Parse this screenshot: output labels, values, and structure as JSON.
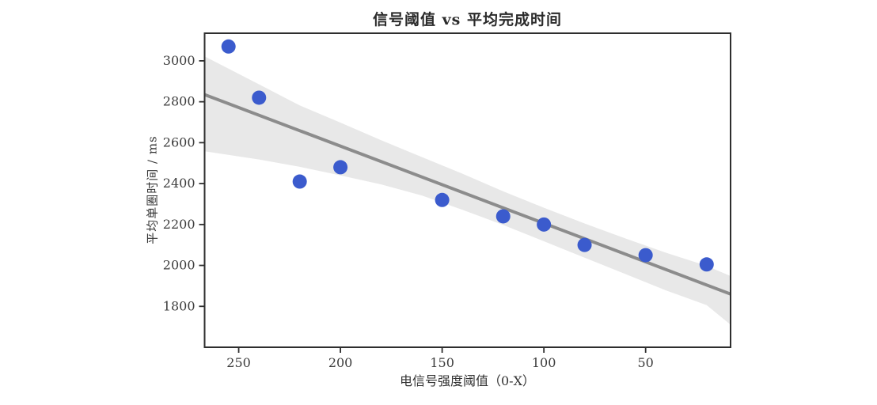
{
  "chart_data": {
    "type": "scatter",
    "title": "信号阈值 vs 平均完成时间",
    "xlabel": "电信号强度阈值（0-X）",
    "ylabel": "平均单圈时间 / ms",
    "x_axis_inverted": true,
    "xlim": [
      266.75,
      8.25
    ],
    "ylim": [
      1600,
      3135
    ],
    "xticks": [
      250,
      200,
      150,
      100,
      50
    ],
    "yticks": [
      1800,
      2000,
      2200,
      2400,
      2600,
      2800,
      3000
    ],
    "grid": false,
    "legend": "none",
    "points": [
      {
        "x": 255,
        "y": 3070
      },
      {
        "x": 240,
        "y": 2820
      },
      {
        "x": 220,
        "y": 2410
      },
      {
        "x": 200,
        "y": 2480
      },
      {
        "x": 150,
        "y": 2320
      },
      {
        "x": 120,
        "y": 2240
      },
      {
        "x": 100,
        "y": 2200
      },
      {
        "x": 80,
        "y": 2100
      },
      {
        "x": 50,
        "y": 2050
      },
      {
        "x": 20,
        "y": 2005
      }
    ],
    "trend_line": {
      "x": [
        266.75,
        8.25
      ],
      "y": [
        2835,
        1860
      ]
    },
    "ci_band": {
      "x": [
        266.75,
        240,
        220,
        200,
        180,
        160,
        140,
        120,
        100,
        80,
        60,
        40,
        20,
        8.25
      ],
      "upper": [
        3022,
        2885,
        2782,
        2698,
        2612,
        2530,
        2448,
        2362,
        2282,
        2205,
        2132,
        2062,
        1998,
        1948
      ],
      "lower": [
        2558,
        2518,
        2482,
        2440,
        2396,
        2342,
        2272,
        2198,
        2118,
        2038,
        1958,
        1878,
        1806,
        1710
      ]
    },
    "colors": {
      "point": "#3b5bcd",
      "trend": "#8c8c8c",
      "band": "#e8e8e8",
      "spine": "#2e2e2e",
      "tick_label": "#3c3c3c",
      "background": "#ffffff"
    },
    "point_radius": 9,
    "tick_label_size": 15
  }
}
